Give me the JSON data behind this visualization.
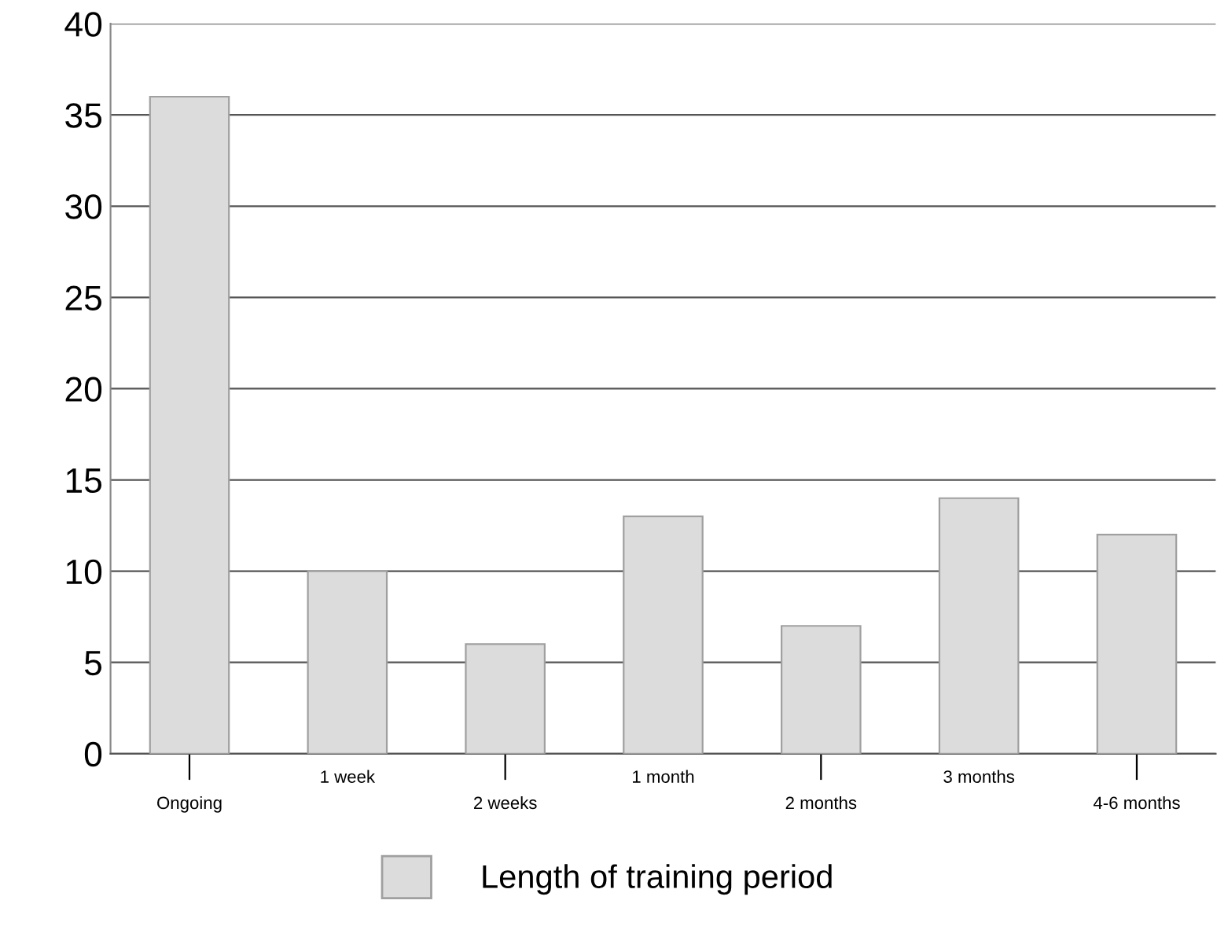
{
  "chart_data": {
    "type": "bar",
    "categories": [
      "Ongoing",
      "1 week",
      "2 weeks",
      "1 month",
      "2 months",
      "3 months",
      "4-6 months"
    ],
    "series": [
      {
        "name": "Length of training period",
        "color": "#dcdcdc",
        "values": [
          36,
          10,
          6,
          13,
          7,
          14,
          12
        ]
      }
    ],
    "ylim": [
      0,
      40
    ],
    "yticks": [
      0,
      5,
      10,
      15,
      20,
      25,
      30,
      35,
      40
    ],
    "grid": "y",
    "legend": "bottom"
  }
}
